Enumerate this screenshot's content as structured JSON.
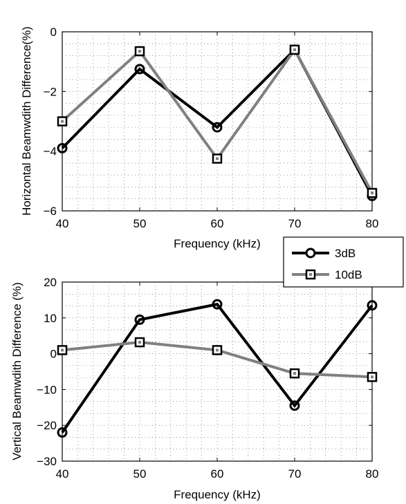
{
  "chart_data": [
    {
      "type": "line",
      "title": "",
      "xlabel": "Frequency (kHz)",
      "ylabel": "Horizontal Beamwdith Difference(%)",
      "x": [
        40,
        50,
        60,
        70,
        80
      ],
      "xlim": [
        40,
        80
      ],
      "ylim": [
        -6,
        0
      ],
      "xticks": [
        "40",
        "50",
        "60",
        "70",
        "80"
      ],
      "yticks": [
        "0",
        "−2",
        "−4",
        "−6"
      ],
      "grid": true,
      "series": [
        {
          "name": "3dB",
          "color": "#000000",
          "marker": "circle",
          "values": [
            -3.9,
            -1.25,
            -3.2,
            -0.6,
            -5.5
          ]
        },
        {
          "name": "10dB",
          "color": "#808080",
          "marker": "square",
          "values": [
            -3.0,
            -0.65,
            -4.25,
            -0.6,
            -5.4
          ]
        }
      ]
    },
    {
      "type": "line",
      "title": "",
      "xlabel": "Frequency (kHz)",
      "ylabel": "Vertical Beamwdith Difference (%)",
      "x": [
        40,
        50,
        60,
        70,
        80
      ],
      "xlim": [
        40,
        80
      ],
      "ylim": [
        -30,
        20
      ],
      "xticks": [
        "40",
        "50",
        "60",
        "70",
        "80"
      ],
      "yticks": [
        "20",
        "10",
        "0",
        "−10",
        "−20",
        "−30"
      ],
      "grid": true,
      "series": [
        {
          "name": "3dB",
          "color": "#000000",
          "marker": "circle",
          "values": [
            -22,
            9.5,
            13.8,
            -14.5,
            13.5
          ]
        },
        {
          "name": "10dB",
          "color": "#808080",
          "marker": "square",
          "values": [
            1.0,
            3.2,
            1.0,
            -5.5,
            -6.5
          ]
        }
      ]
    }
  ],
  "legend": {
    "placement": "between-plots-right",
    "entries": [
      "3dB",
      "10dB"
    ]
  }
}
